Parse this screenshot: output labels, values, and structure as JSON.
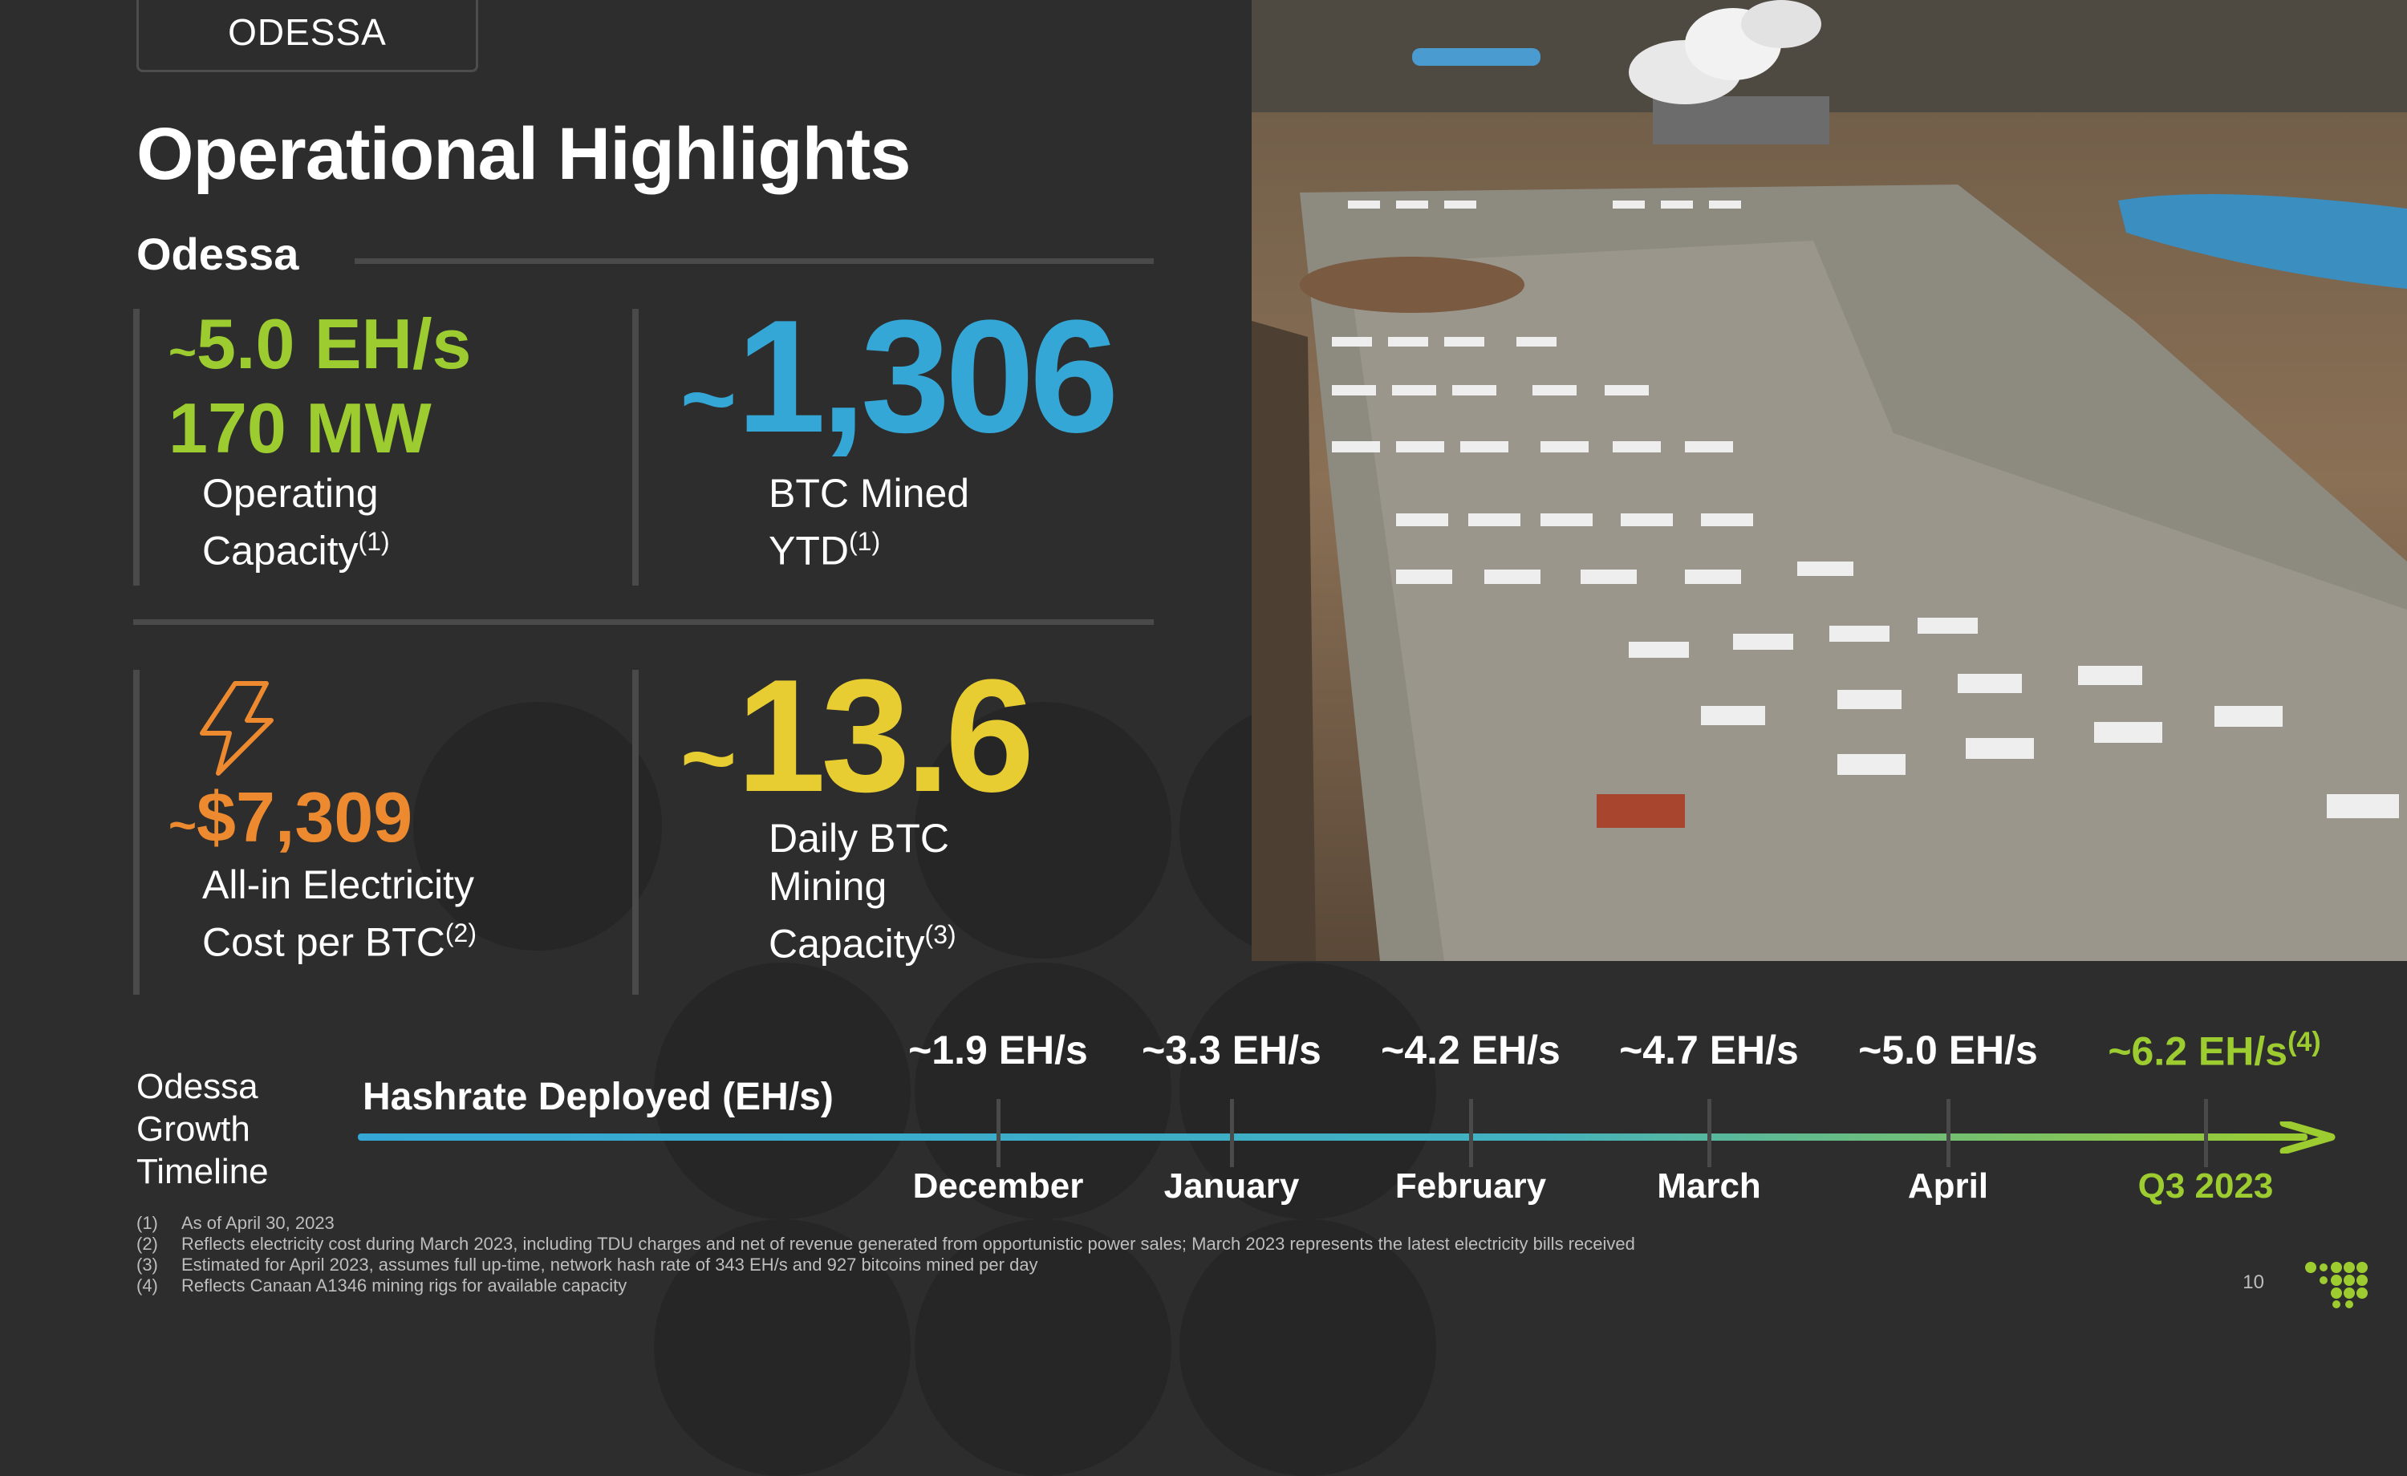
{
  "tag": "ODESSA",
  "title": "Operational Highlights",
  "section": "Odessa",
  "metrics": {
    "capacity": {
      "value_ehs": "5.0 EH/s",
      "value_mw": "170 MW",
      "line1": "Operating",
      "line2": "Capacity",
      "note": "(1)"
    },
    "btc_mined": {
      "tilde": "~",
      "value": "1,306",
      "line1": "BTC Mined",
      "line2": "YTD",
      "note": "(1)"
    },
    "electricity": {
      "value": "$7,309",
      "line1": "All-in Electricity",
      "line2": "Cost per BTC",
      "note": "(2)"
    },
    "daily": {
      "tilde": "~",
      "value": "13.6",
      "line1": "Daily BTC",
      "line2": "Mining",
      "line3": "Capacity",
      "note": "(3)"
    }
  },
  "timeline": {
    "label_lines": [
      "Odessa",
      "Growth",
      "Timeline"
    ],
    "title": "Hashrate Deployed (EH/s)",
    "points": [
      {
        "value": "~1.9 EH/s",
        "month": "December"
      },
      {
        "value": "~3.3 EH/s",
        "month": "January"
      },
      {
        "value": "~4.2 EH/s",
        "month": "February"
      },
      {
        "value": "~4.7 EH/s",
        "month": "March"
      },
      {
        "value": "~5.0 EH/s",
        "month": "April"
      },
      {
        "value": "~6.2 EH/s",
        "note": "(4)",
        "month": "Q3 2023"
      }
    ]
  },
  "footnotes": [
    {
      "n": "(1)",
      "text": "As of April 30, 2023"
    },
    {
      "n": "(2)",
      "text": "Reflects electricity cost during March 2023, including TDU charges and net of revenue generated from opportunistic power sales; March 2023 represents the latest electricity bills received"
    },
    {
      "n": "(3)",
      "text": "Estimated for April 2023, assumes full up-time, network hash rate of 343 EH/s and 927 bitcoins mined per day"
    },
    {
      "n": "(4)",
      "text": "Reflects Canaan A1346 mining rigs for available capacity"
    }
  ],
  "page_number": "10",
  "colors": {
    "background": "#2d2d2d",
    "green": "#9ccc2f",
    "blue": "#34a7d6",
    "orange": "#ed8a2f",
    "yellow": "#e8cd32"
  }
}
